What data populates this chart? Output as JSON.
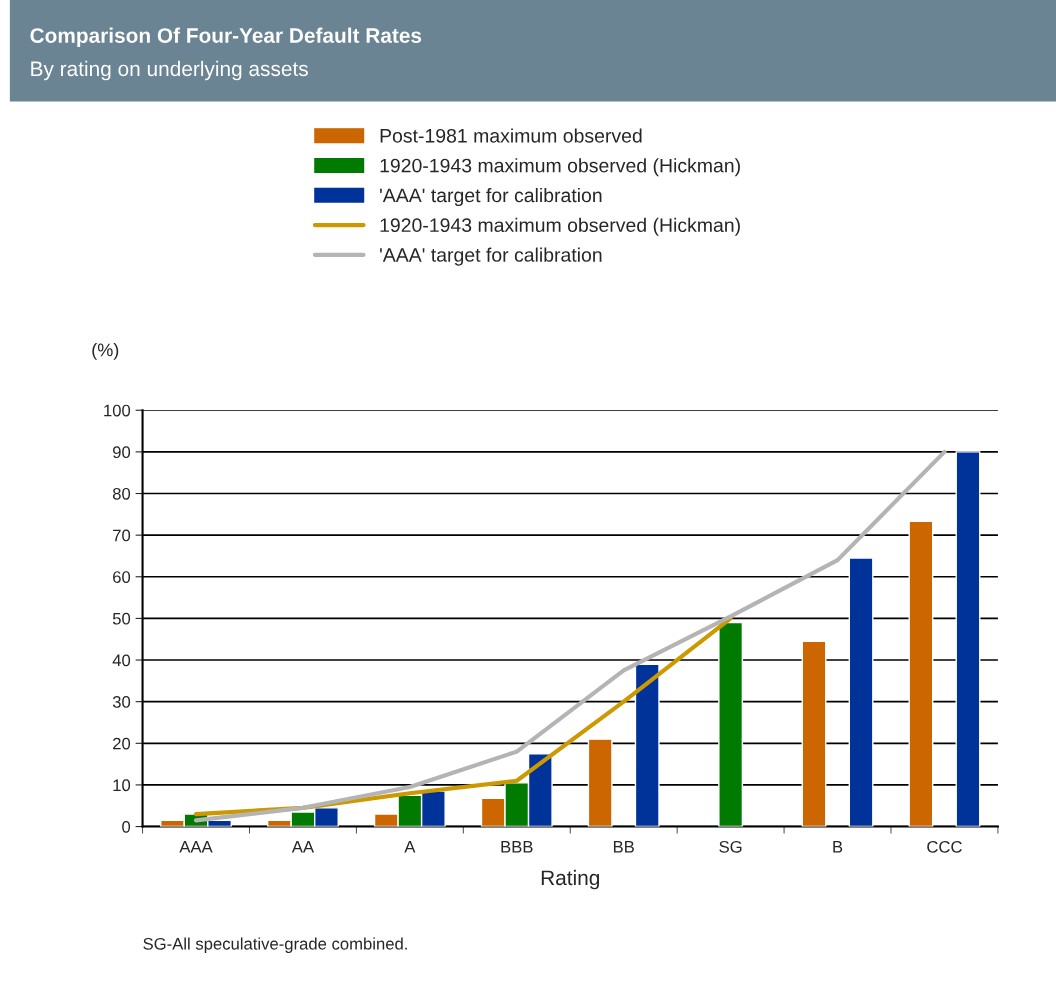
{
  "chart_data": {
    "type": "bar",
    "title": "Comparison Of Four-Year Default Rates",
    "subtitle": "By rating on underlying assets",
    "xlabel": "Rating",
    "ylabel": "(%)",
    "categories": [
      "AAA",
      "AA",
      "A",
      "BBB",
      "BB",
      "SG",
      "B",
      "CCC"
    ],
    "series": [
      {
        "name": "Post-1981 maximum observed",
        "color": "#cc6600",
        "values": [
          1.5,
          1.5,
          3,
          6.8,
          21,
          null,
          44.5,
          73.3
        ]
      },
      {
        "name": "1920-1943 maximum observed (Hickman)",
        "color": "#007a00",
        "values": [
          3,
          3.5,
          7.5,
          10.5,
          null,
          49,
          null,
          null
        ]
      },
      {
        "name": "'AAA' target for calibration",
        "color": "#003399",
        "values": [
          1.5,
          4.5,
          8.5,
          17.5,
          39,
          null,
          64.5,
          90
        ]
      },
      {
        "name": "1920-1943 maximum observed (Hickman)",
        "type": "line",
        "color": "#cc9900",
        "values": [
          3,
          4.5,
          8,
          11,
          30,
          50,
          null,
          null
        ]
      },
      {
        "name": "'AAA' target for calibration",
        "type": "line",
        "color": "#b4b4b4",
        "values": [
          1.5,
          4.5,
          9.5,
          18,
          37.5,
          50.5,
          64,
          90
        ]
      }
    ],
    "ylim": [
      0,
      100
    ],
    "yticks": [
      0,
      10,
      20,
      30,
      40,
      50,
      60,
      70,
      80,
      90,
      100
    ],
    "grid": "y",
    "legend": "top",
    "annotations": [
      "SG-All speculative-grade combined."
    ]
  }
}
